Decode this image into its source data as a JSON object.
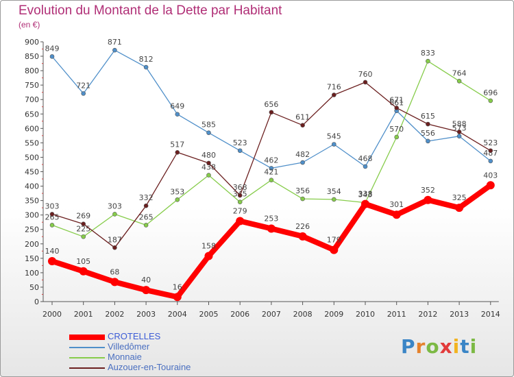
{
  "page": {
    "title": "Evolution du Montant de la Dette par Habitant",
    "subtitle": "(en €)",
    "logo_letters": [
      "P",
      "r",
      "o",
      "x",
      "i",
      "t",
      "i"
    ],
    "logo_colors": [
      "#3a85c6",
      "#e5822c",
      "#7cb944",
      "#e23b3b",
      "#f2b321",
      "#3a85c6",
      "#7cb944"
    ]
  },
  "chart_data": {
    "type": "line",
    "title": "Evolution du Montant de la Dette par Habitant",
    "subtitle": "(en €)",
    "xlabel": "",
    "ylabel": "",
    "x": [
      "2000",
      "2001",
      "2002",
      "2003",
      "2004",
      "2005",
      "2006",
      "2007",
      "2008",
      "2009",
      "2010",
      "2011",
      "2012",
      "2013",
      "2014"
    ],
    "ylim": [
      0,
      900
    ],
    "yticks": [
      0,
      50,
      100,
      150,
      200,
      250,
      300,
      350,
      400,
      450,
      500,
      550,
      600,
      650,
      700,
      750,
      800,
      850,
      900
    ],
    "grid": false,
    "legend": "bottom-left",
    "series": [
      {
        "name": "Villedômer",
        "color": "#4f8fc9",
        "highlight": false,
        "values": [
          849,
          721,
          871,
          812,
          649,
          585,
          523,
          462,
          482,
          545,
          468,
          661,
          556,
          573,
          487
        ],
        "labels": [
          "849",
          "721",
          "871",
          "812",
          "649",
          "585",
          "523",
          "462",
          "482",
          "545",
          "468",
          "661",
          "556",
          "573",
          "487"
        ]
      },
      {
        "name": "Monnaie",
        "color": "#86cc4a",
        "highlight": false,
        "values": [
          265,
          225,
          303,
          265,
          353,
          438,
          345,
          421,
          356,
          354,
          343,
          570,
          833,
          764,
          696
        ],
        "labels": [
          "265",
          "225",
          "303",
          "265",
          "353",
          "438",
          "345",
          "421",
          "356",
          "354",
          "343",
          "570",
          "833",
          "764",
          "696"
        ]
      },
      {
        "name": "Auzouer-en-Touraine",
        "color": "#6b1f1f",
        "highlight": false,
        "values": [
          303,
          269,
          187,
          332,
          517,
          480,
          368,
          656,
          611,
          716,
          760,
          671,
          615,
          588,
          523
        ],
        "labels": [
          "303",
          "269",
          "187",
          "332",
          "517",
          "480",
          "368",
          "656",
          "611",
          "716",
          "760",
          "671",
          "615",
          "588",
          "523"
        ]
      },
      {
        "name": "CROTELLES",
        "color": "#ff0000",
        "highlight": true,
        "values": [
          140,
          105,
          68,
          40,
          16,
          158,
          279,
          253,
          226,
          179,
          338,
          301,
          352,
          325,
          403
        ],
        "labels": [
          "140",
          "105",
          "68",
          "40",
          "16",
          "158",
          "279",
          "253",
          "226",
          "179",
          "338",
          "301",
          "352",
          "325",
          "403"
        ]
      }
    ]
  }
}
